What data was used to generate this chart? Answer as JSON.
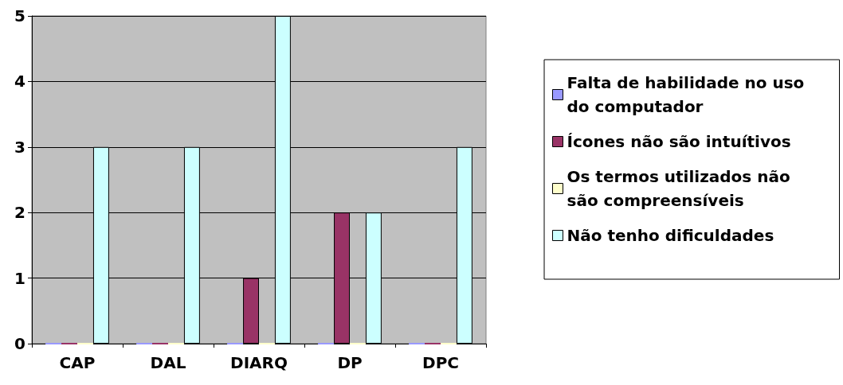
{
  "chart_data": {
    "type": "bar",
    "categories": [
      "CAP",
      "DAL",
      "DIARQ",
      "DP",
      "DPC"
    ],
    "series": [
      {
        "name": "Falta de habilidade no uso do computador",
        "color": "#9999ff",
        "values": [
          0,
          0,
          0,
          0,
          0
        ]
      },
      {
        "name": "Ícones não são intuítivos",
        "color": "#993366",
        "values": [
          0,
          0,
          1,
          2,
          0
        ]
      },
      {
        "name": "Os termos utilizados não são compreensíveis",
        "color": "#ffffcc",
        "values": [
          0,
          0,
          0,
          0,
          0
        ]
      },
      {
        "name": "Não tenho dificuldades",
        "color": "#ccffff",
        "values": [
          3,
          3,
          5,
          2,
          3
        ]
      }
    ],
    "ylim": [
      0,
      5
    ],
    "yticks": [
      0,
      1,
      2,
      3,
      4,
      5
    ],
    "grid": "y",
    "legend": "right"
  }
}
